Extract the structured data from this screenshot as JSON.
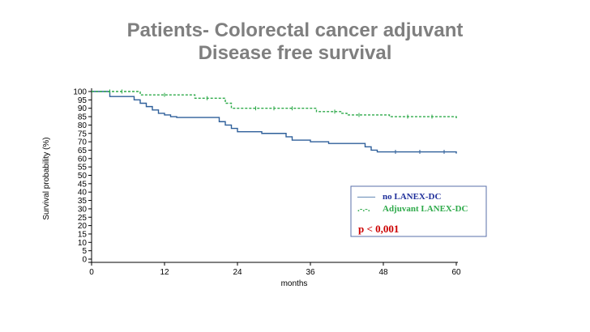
{
  "slide": {
    "title_line1": "Patients- Colorectal cancer adjuvant",
    "title_line2": "Disease free survival"
  },
  "chart_data": {
    "type": "line",
    "title": "",
    "xlabel": "months",
    "ylabel": "Survival probability (%)",
    "xlim": [
      0,
      60
    ],
    "ylim": [
      0,
      100
    ],
    "xticks": [
      0,
      12,
      24,
      36,
      48,
      60
    ],
    "yticks": [
      0,
      5,
      10,
      15,
      20,
      25,
      30,
      35,
      40,
      45,
      50,
      55,
      60,
      65,
      70,
      75,
      80,
      85,
      90,
      95,
      100
    ],
    "grid": false,
    "legend_position": "bottom-right",
    "annotation": "p < 0,001",
    "annotation_color": "#cc0000",
    "series": [
      {
        "name": "no LANEX-DC",
        "legend_symbol": "——",
        "color": "#2e5f9a",
        "style": "solid",
        "x": [
          0,
          3,
          3,
          6,
          7,
          8,
          9,
          10,
          11,
          12,
          13,
          14,
          20,
          21,
          22,
          23,
          24,
          28,
          32,
          33,
          36,
          39,
          45,
          46,
          47,
          60
        ],
        "y": [
          100,
          100,
          97,
          97,
          95,
          93,
          91,
          89,
          87,
          86,
          85,
          84.5,
          84.5,
          82,
          80,
          78,
          76,
          75,
          73,
          71,
          70,
          69,
          67,
          65,
          64,
          63
        ],
        "censor_x": [
          50,
          54,
          58
        ]
      },
      {
        "name": "Adjuvant LANEX-DC",
        "legend_symbol": ".-.-.",
        "color": "#2eaa4a",
        "style": "dashed",
        "x": [
          0,
          7,
          8,
          16,
          17,
          22,
          23,
          37,
          41,
          42,
          49,
          60
        ],
        "y": [
          100,
          100,
          98,
          98,
          96,
          93,
          90,
          88,
          87,
          86,
          85,
          84
        ],
        "censor_x": [
          3,
          5,
          12,
          19,
          27,
          30,
          33,
          40,
          44,
          52,
          56
        ]
      }
    ]
  }
}
